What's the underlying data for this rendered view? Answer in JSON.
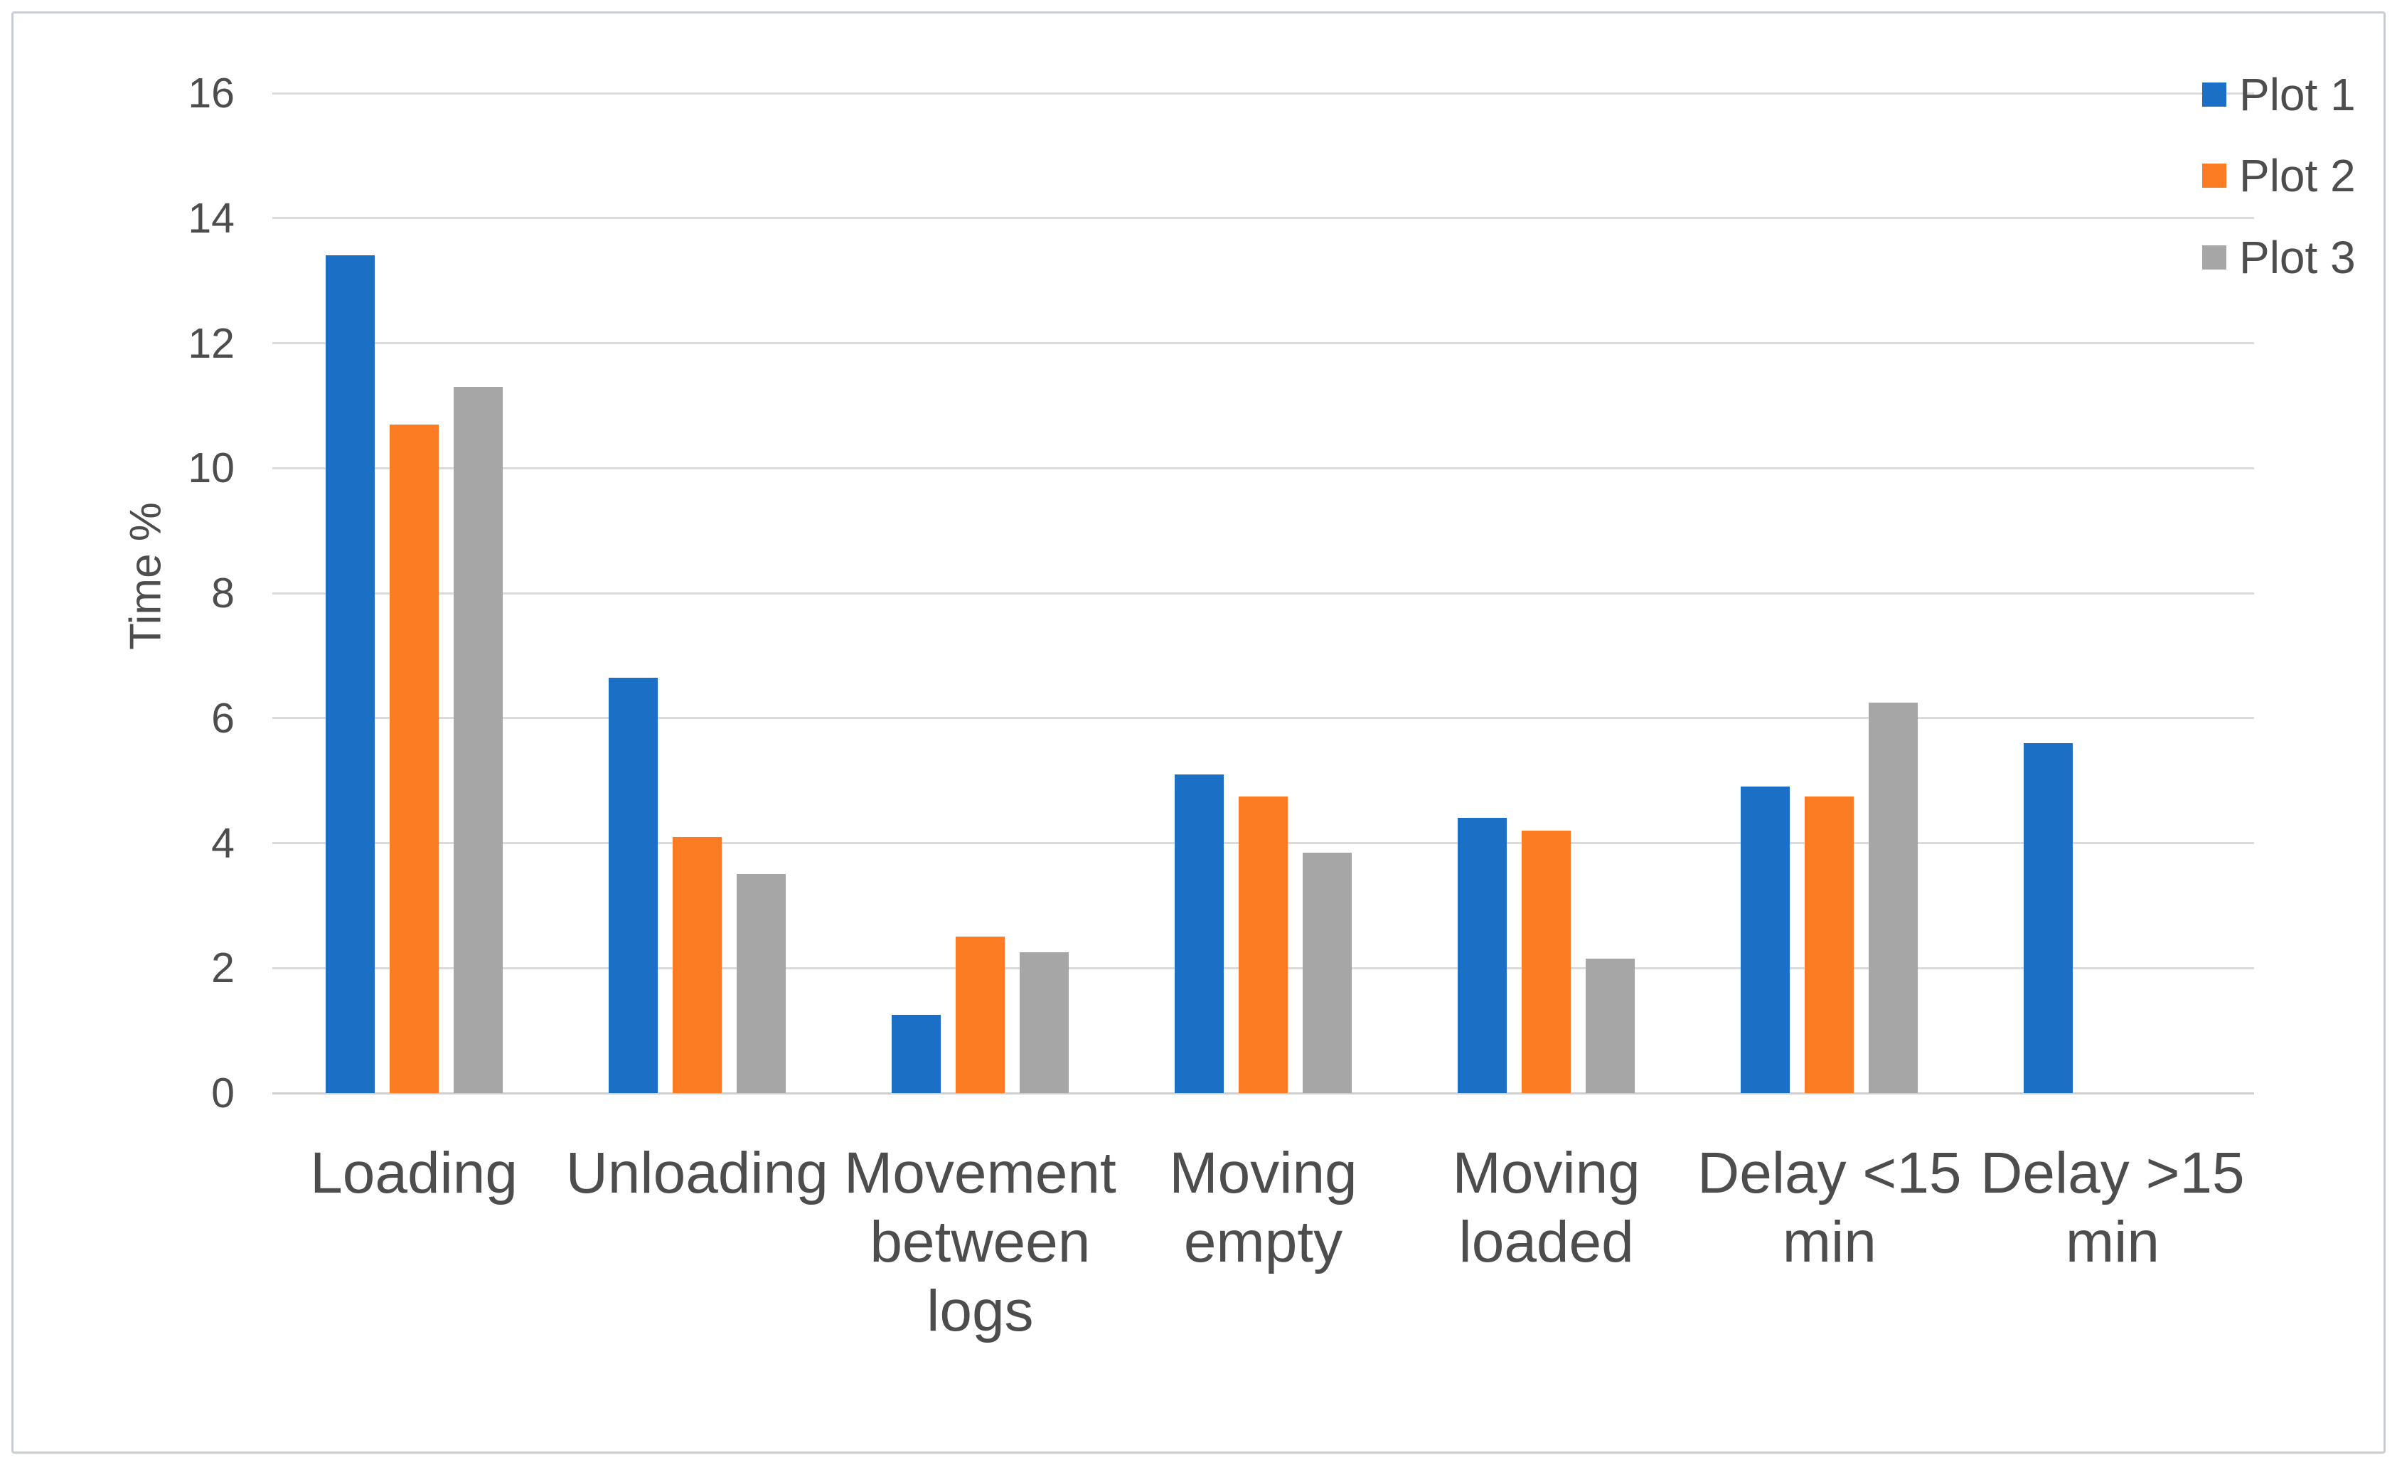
{
  "chart_data": {
    "type": "bar",
    "title": "",
    "xlabel": "",
    "ylabel": "Time %",
    "ylim": [
      0,
      16
    ],
    "yticks": [
      0,
      2,
      4,
      6,
      8,
      10,
      12,
      14,
      16
    ],
    "grid": true,
    "legend_position": "top-right",
    "categories": [
      "Loading",
      "Unloading",
      "Movement between logs",
      "Moving empty",
      "Moving loaded",
      "Delay <15 min",
      "Delay >15 min"
    ],
    "series": [
      {
        "name": "Plot 1",
        "color": "#1B70C5",
        "values": [
          13.4,
          6.65,
          1.25,
          5.1,
          4.4,
          4.9,
          5.6
        ]
      },
      {
        "name": "Plot 2",
        "color": "#FB7C22",
        "values": [
          10.7,
          4.1,
          2.5,
          4.75,
          4.2,
          4.75,
          0
        ]
      },
      {
        "name": "Plot 3",
        "color": "#A6A6A6",
        "values": [
          11.3,
          3.5,
          2.25,
          3.85,
          2.15,
          6.25,
          0
        ]
      }
    ]
  },
  "style": {
    "background": "#FFFFFF",
    "gridline_color": "#DBDBDB",
    "baseline_color": "#CFCFCF",
    "text_color": "#4D4D4D",
    "frame_border_color": "#C9CDD2"
  }
}
